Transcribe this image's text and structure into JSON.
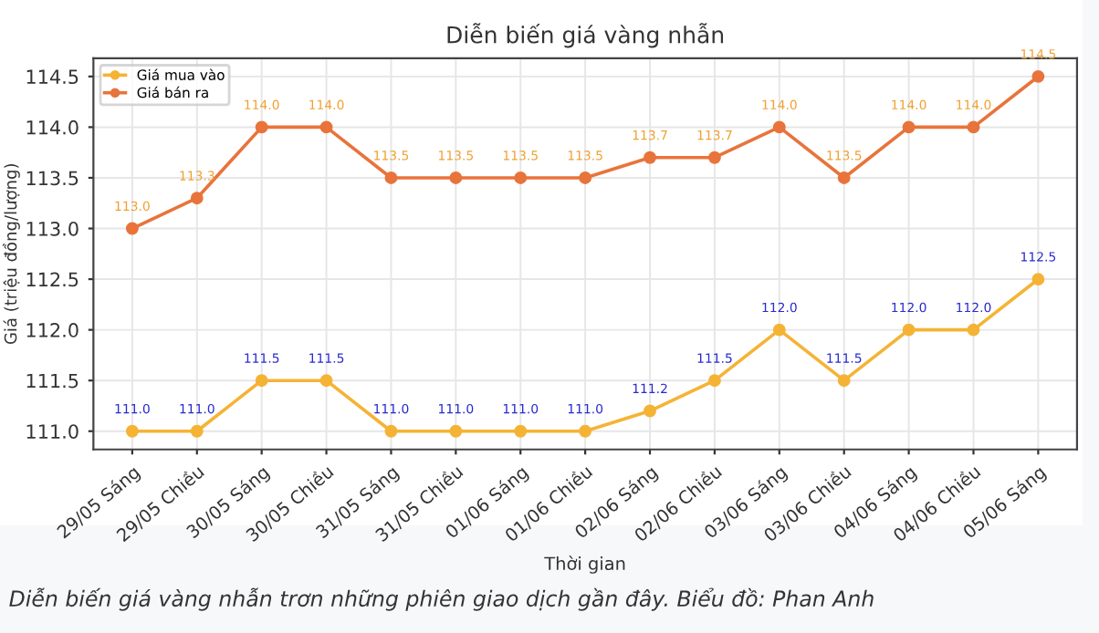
{
  "chart_data": {
    "type": "line",
    "title": "Diễn biến giá vàng nhẫn",
    "xlabel": "Thời gian",
    "ylabel": "Giá (triệu đồng/lượng)",
    "categories": [
      "29/05 Sáng",
      "29/05 Chiều",
      "30/05 Sáng",
      "30/05 Chiều",
      "31/05 Sáng",
      "31/05 Chiều",
      "01/06 Sáng",
      "01/06 Chiều",
      "02/06 Sáng",
      "02/06 Chiều",
      "03/06 Sáng",
      "03/06 Chiều",
      "04/06 Sáng",
      "04/06 Chiều",
      "05/06 Sáng"
    ],
    "series": [
      {
        "name": "Giá mua vào",
        "color": "#f5b335",
        "values": [
          111.0,
          111.0,
          111.5,
          111.5,
          111.0,
          111.0,
          111.0,
          111.0,
          111.2,
          111.5,
          112.0,
          111.5,
          112.0,
          112.0,
          112.5
        ],
        "value_labels": [
          "111.0",
          "111.0",
          "111.5",
          "111.5",
          "111.0",
          "111.0",
          "111.0",
          "111.0",
          "111.2",
          "111.5",
          "112.0",
          "111.5",
          "112.0",
          "112.0",
          "112.5"
        ]
      },
      {
        "name": "Giá bán ra",
        "color": "#e8743b",
        "values": [
          113.0,
          113.3,
          114.0,
          114.0,
          113.5,
          113.5,
          113.5,
          113.5,
          113.7,
          113.7,
          114.0,
          113.5,
          114.0,
          114.0,
          114.5
        ],
        "value_labels": [
          "113.0",
          "113.3",
          "114.0",
          "114.0",
          "113.5",
          "113.5",
          "113.5",
          "113.5",
          "113.7",
          "113.7",
          "114.0",
          "113.5",
          "114.0",
          "114.0",
          "114.5"
        ]
      }
    ],
    "ylim": [
      110.82,
      114.68
    ],
    "yticks": [
      {
        "value": 111.0,
        "label": "111.0"
      },
      {
        "value": 111.5,
        "label": "111.5"
      },
      {
        "value": 112.0,
        "label": "112.0"
      },
      {
        "value": 112.5,
        "label": "112.5"
      },
      {
        "value": 113.0,
        "label": "113.0"
      },
      {
        "value": 113.5,
        "label": "113.5"
      },
      {
        "value": 114.0,
        "label": "114.0"
      },
      {
        "value": 114.5,
        "label": "114.5"
      }
    ],
    "grid": true,
    "legend": "top left",
    "marker": "circle",
    "line_style": "solid",
    "annotations": [
      "Diễn biến giá vàng nhẫn trơn những phiên giao dịch gần đây. Biểu đồ: Phan Anh"
    ]
  }
}
